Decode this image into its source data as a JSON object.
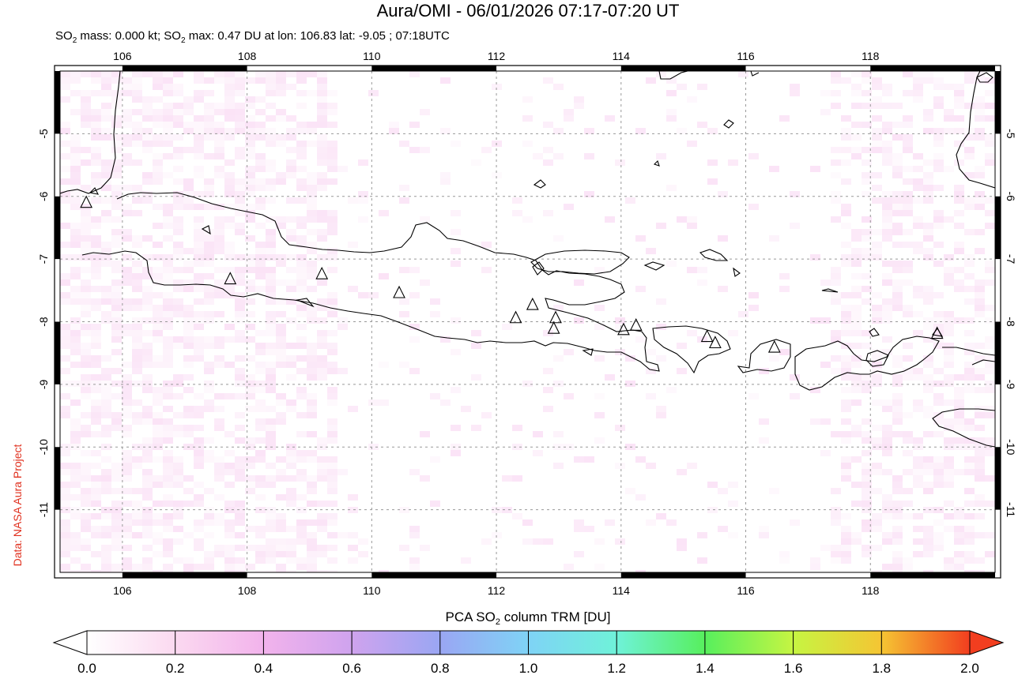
{
  "title": "Aura/OMI - 06/01/2026 07:17-07:20 UT",
  "subtitle": {
    "prefix": "SO",
    "sub": "2",
    "mid": " mass: 0.000 kt; SO",
    "sub2": "2",
    "rest": " max: 0.47 DU at lon: 106.83 lat: -9.05 ; 07:18UTC"
  },
  "credit": "Data: NASA Aura Project",
  "map": {
    "lon_range": [
      105,
      120
    ],
    "lat_range": [
      -12,
      -4
    ],
    "lon_ticks": [
      "106",
      "108",
      "110",
      "112",
      "114",
      "116",
      "118"
    ],
    "lon_tick_values": [
      106,
      108,
      110,
      112,
      114,
      116,
      118
    ],
    "lat_ticks": [
      "-5",
      "-6",
      "-7",
      "-8",
      "-9",
      "-10",
      "-11"
    ],
    "lat_tick_values": [
      -5,
      -6,
      -7,
      -8,
      -9,
      -10,
      -11
    ],
    "gridlines": true,
    "volcano_marker": "triangle-icon",
    "volcanoes": [
      {
        "lon": 105.42,
        "lat": -6.1
      },
      {
        "lon": 107.73,
        "lat": -7.32
      },
      {
        "lon": 109.2,
        "lat": -7.24
      },
      {
        "lon": 110.44,
        "lat": -7.54
      },
      {
        "lon": 112.31,
        "lat": -7.94
      },
      {
        "lon": 112.58,
        "lat": -7.73
      },
      {
        "lon": 112.95,
        "lat": -7.94
      },
      {
        "lon": 112.92,
        "lat": -8.11
      },
      {
        "lon": 114.04,
        "lat": -8.13
      },
      {
        "lon": 114.24,
        "lat": -8.06
      },
      {
        "lon": 115.38,
        "lat": -8.24
      },
      {
        "lon": 115.51,
        "lat": -8.34
      },
      {
        "lon": 116.46,
        "lat": -8.41
      },
      {
        "lon": 119.07,
        "lat": -8.19
      }
    ]
  },
  "colorbar": {
    "title_prefix": "PCA SO",
    "title_sub": "2",
    "title_rest": " column TRM [DU]",
    "tick_labels": [
      "0.0",
      "0.2",
      "0.4",
      "0.6",
      "0.8",
      "1.0",
      "1.2",
      "1.4",
      "1.6",
      "1.8",
      "2.0"
    ],
    "min": 0.0,
    "max": 2.0,
    "colors": [
      "#ffffff",
      "#fbd9f0",
      "#f2b3ec",
      "#cfa3ee",
      "#9aa6f3",
      "#7fd3f6",
      "#6ff2d9",
      "#57ef5d",
      "#c6f542",
      "#f5c533",
      "#f23e1f"
    ]
  }
}
